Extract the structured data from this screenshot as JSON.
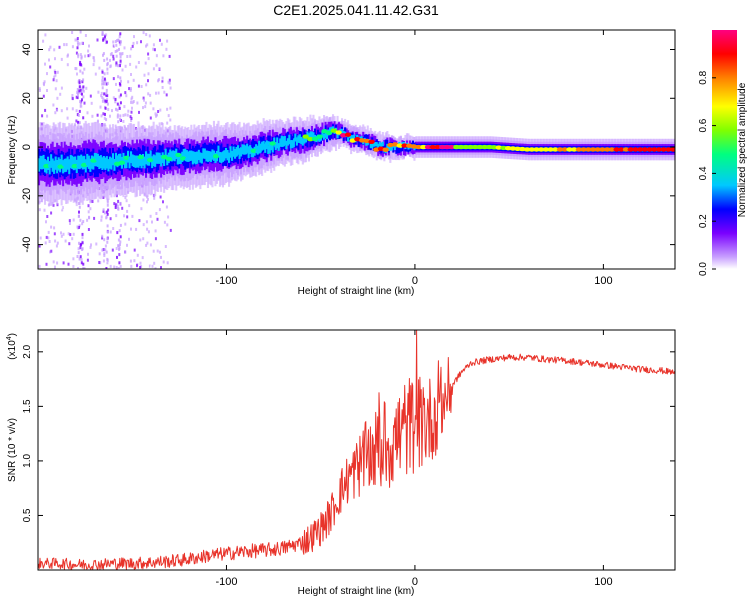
{
  "title": "C2E1.2025.041.11.42.G31",
  "chart_data": [
    {
      "type": "heatmap",
      "xlabel": "Height of straight line (km)",
      "ylabel": "Frequency (Hz)",
      "xlim": [
        -200,
        138
      ],
      "ylim": [
        -50,
        48
      ],
      "xticks": [
        -100,
        0,
        100
      ],
      "yticks": [
        -40,
        -20,
        0,
        20,
        40
      ],
      "colorbar": {
        "label": "Normalized spectral amplitude",
        "range": [
          0,
          1
        ],
        "ticks": [
          "0.0",
          "0.2",
          "0.4",
          "0.6",
          "0.8"
        ],
        "tick_values": [
          0,
          0.2,
          0.4,
          0.6,
          0.8
        ],
        "colors": [
          "#ffffff",
          "#c8a0ff",
          "#7a00ff",
          "#0000ff",
          "#00c8ff",
          "#00ff80",
          "#80ff00",
          "#ffff00",
          "#ff8000",
          "#ff0000",
          "#ff0080"
        ]
      },
      "ridge": {
        "x": [
          -200,
          -190,
          -180,
          -170,
          -160,
          -150,
          -140,
          -130,
          -120,
          -110,
          -100,
          -90,
          -80,
          -70,
          -60,
          -50,
          -45,
          -40,
          -35,
          -30,
          -25,
          -20,
          -15,
          -10,
          -5,
          0,
          10,
          20,
          30,
          40,
          60,
          80,
          100,
          120,
          138
        ],
        "freq": [
          -7,
          -7,
          -7,
          -6,
          -6,
          -5,
          -5,
          -4,
          -4,
          -3,
          -3,
          -2,
          0,
          2,
          3,
          5,
          6,
          6,
          4,
          3,
          2,
          0,
          0,
          0,
          0,
          0,
          0,
          0,
          0,
          0,
          -1,
          -1,
          -1,
          -1,
          -1
        ],
        "width": [
          9,
          9,
          9,
          9,
          8,
          8,
          8,
          7,
          7,
          7,
          7,
          6,
          6,
          5,
          5,
          4,
          4,
          3,
          3,
          3,
          3,
          3,
          3,
          2.5,
          2.5,
          2.5,
          2.5,
          2.5,
          2.5,
          2.5,
          2.5,
          2.5,
          2.5,
          2.5,
          2.5
        ]
      }
    },
    {
      "type": "line",
      "xlabel": "Height of straight line (km)",
      "ylabel": "SNR (10 * v/v)",
      "yscale_label": "(x10",
      "yscale_exp": "4",
      "yscale_close": ")",
      "xlim": [
        -200,
        138
      ],
      "ylim": [
        0,
        2.2
      ],
      "xticks": [
        -100,
        0,
        100
      ],
      "yticks": [
        0.5,
        1.0,
        1.5,
        2.0
      ],
      "ytick_labels": [
        "0.5",
        "1.0",
        "1.5",
        "2.0"
      ],
      "color": "#e8332a",
      "series": [
        {
          "x": [
            -200,
            -190,
            -180,
            -170,
            -160,
            -150,
            -140,
            -130,
            -120,
            -110,
            -100,
            -90,
            -80,
            -70,
            -60,
            -55,
            -50,
            -45,
            -40,
            -35,
            -30,
            -25,
            -20,
            -15,
            -10,
            -5,
            0,
            5,
            10,
            15,
            20,
            25,
            30,
            40,
            50,
            60,
            70,
            80,
            90,
            100,
            110,
            120,
            130,
            138
          ],
          "values": [
            0.06,
            0.06,
            0.05,
            0.05,
            0.06,
            0.06,
            0.07,
            0.08,
            0.1,
            0.13,
            0.15,
            0.17,
            0.18,
            0.2,
            0.25,
            0.3,
            0.38,
            0.5,
            0.7,
            0.85,
            0.95,
            1.05,
            1.1,
            1.15,
            1.2,
            1.3,
            1.35,
            1.35,
            1.4,
            1.55,
            1.7,
            1.82,
            1.9,
            1.93,
            1.95,
            1.95,
            1.93,
            1.92,
            1.9,
            1.88,
            1.86,
            1.84,
            1.83,
            1.81
          ]
        }
      ]
    }
  ]
}
